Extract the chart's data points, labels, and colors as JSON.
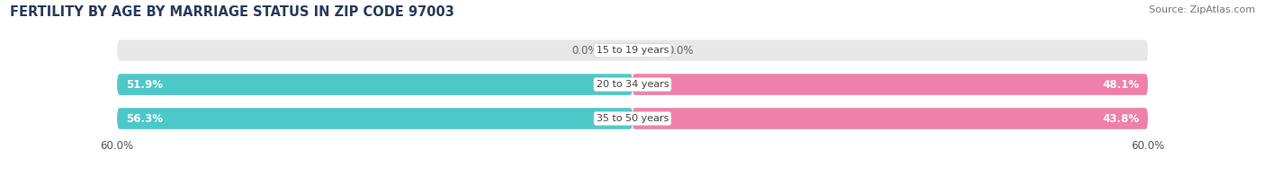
{
  "title": "FERTILITY BY AGE BY MARRIAGE STATUS IN ZIP CODE 97003",
  "source": "Source: ZipAtlas.com",
  "categories": [
    "15 to 19 years",
    "20 to 34 years",
    "35 to 50 years"
  ],
  "married_values": [
    0.0,
    51.9,
    56.3
  ],
  "unmarried_values": [
    0.0,
    48.1,
    43.8
  ],
  "max_val": 60.0,
  "married_color": "#4dc8c8",
  "unmarried_color": "#f07faa",
  "bar_bg_color": "#e8e8e8",
  "bar_height": 0.62,
  "title_color": "#2a3a5c",
  "title_fontsize": 10.5,
  "source_fontsize": 8,
  "label_fontsize": 8.5,
  "axis_label_fontsize": 8.5,
  "category_fontsize": 8,
  "background_color": "#ffffff",
  "tick_label": "60.0%",
  "small_bar_width": 3.5
}
